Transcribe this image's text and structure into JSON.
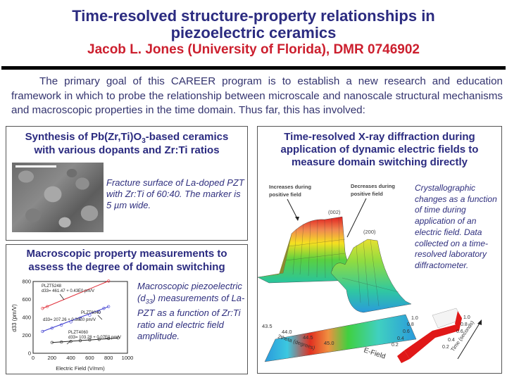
{
  "header": {
    "title_line1": "Time-resolved structure-property relationships in",
    "title_line2": "piezoelectric ceramics",
    "subtitle": "Jacob L. Jones (University of Florida), DMR 0746902"
  },
  "intro": "The primary goal of this CAREER program is to establish a new research and education framework in which to probe the relationship between microscale and nanoscale structural mechanisms and macroscopic properties in the time domain. Thus far, this has involved:",
  "synthesis_box": {
    "title_pre": "Synthesis of Pb(Zr,Ti)O",
    "title_sub": "3",
    "title_post": "-based ceramics",
    "title_line2": "with various dopants and Zr:Ti ratios",
    "image_alt": "SEM fracture surface micrograph",
    "caption": "Fracture surface of La-doped PZT with Zr:Ti of 60:40. The marker is 5 µm wide."
  },
  "macro_box": {
    "title_line1": "Macroscopic property measurements to",
    "title_line2": "assess the degree of domain switching",
    "caption_pre": "Macroscopic piezoelectric (d",
    "caption_sub": "33",
    "caption_post": ") measurements of La-PZT as a function of Zr:Ti ratio and electric field amplitude."
  },
  "xrd_box": {
    "title_line1": "Time-resolved X-ray diffraction during",
    "title_line2": "application of dynamic electric fields to",
    "title_line3": "measure domain switching directly",
    "annotation_left": [
      "Increases during",
      "positive field"
    ],
    "annotation_right": [
      "Decreases during",
      "positive field"
    ],
    "peak_labels": [
      "(002)",
      "(200)"
    ],
    "x_axis_label": "2theta (degrees)",
    "x_ticks": [
      "43.5",
      "44.0",
      "44.5",
      "45.0"
    ],
    "time_ticks_contour": [
      "1.0",
      "0.8",
      "0.6",
      "0.4",
      "0.2"
    ],
    "time_ticks_field": [
      "1.0",
      "0.8",
      "0.6",
      "0.4",
      "0.2"
    ],
    "time_axis_label": "Time (seconds)",
    "efield_label": "E-Field",
    "caption": "Crystallographic changes as a function of time during application of an electric field. Data collected on a time-resolved laboratory diffractometer."
  },
  "chart_data": {
    "type": "scatter",
    "title": "",
    "xlabel": "Electric Field (V/mm)",
    "ylabel": "d33 (pm/V)",
    "xlim": [
      0,
      1000
    ],
    "ylim": [
      0,
      800
    ],
    "x_ticks": [
      "0",
      "200",
      "400",
      "600",
      "800",
      "1000"
    ],
    "y_ticks": [
      "0",
      "200",
      "400",
      "600",
      "800"
    ],
    "grid": false,
    "series": [
      {
        "name": "PLZT5248",
        "color": "#e0303a",
        "fit": "d33= 461.47 + 0.43E0 pm/V",
        "x": [
          100,
          150,
          800
        ],
        "y": [
          500,
          520,
          805
        ]
      },
      {
        "name": "PLZT6040",
        "color": "#3a3ad0",
        "fit": "d33= 207.26 + 0.36E0 pm/V",
        "x": [
          100,
          200,
          300,
          400,
          500,
          600,
          700,
          750,
          800
        ],
        "y": [
          243,
          280,
          315,
          350,
          390,
          425,
          460,
          500,
          520
        ]
      },
      {
        "name": "PLZT4060",
        "color": "#222222",
        "fit": "d33= 103.28 + 0.07E0 pm/V",
        "x": [
          200,
          300,
          400,
          500,
          600,
          700,
          800,
          900
        ],
        "y": [
          120,
          125,
          132,
          140,
          148,
          155,
          165,
          170
        ]
      }
    ]
  }
}
